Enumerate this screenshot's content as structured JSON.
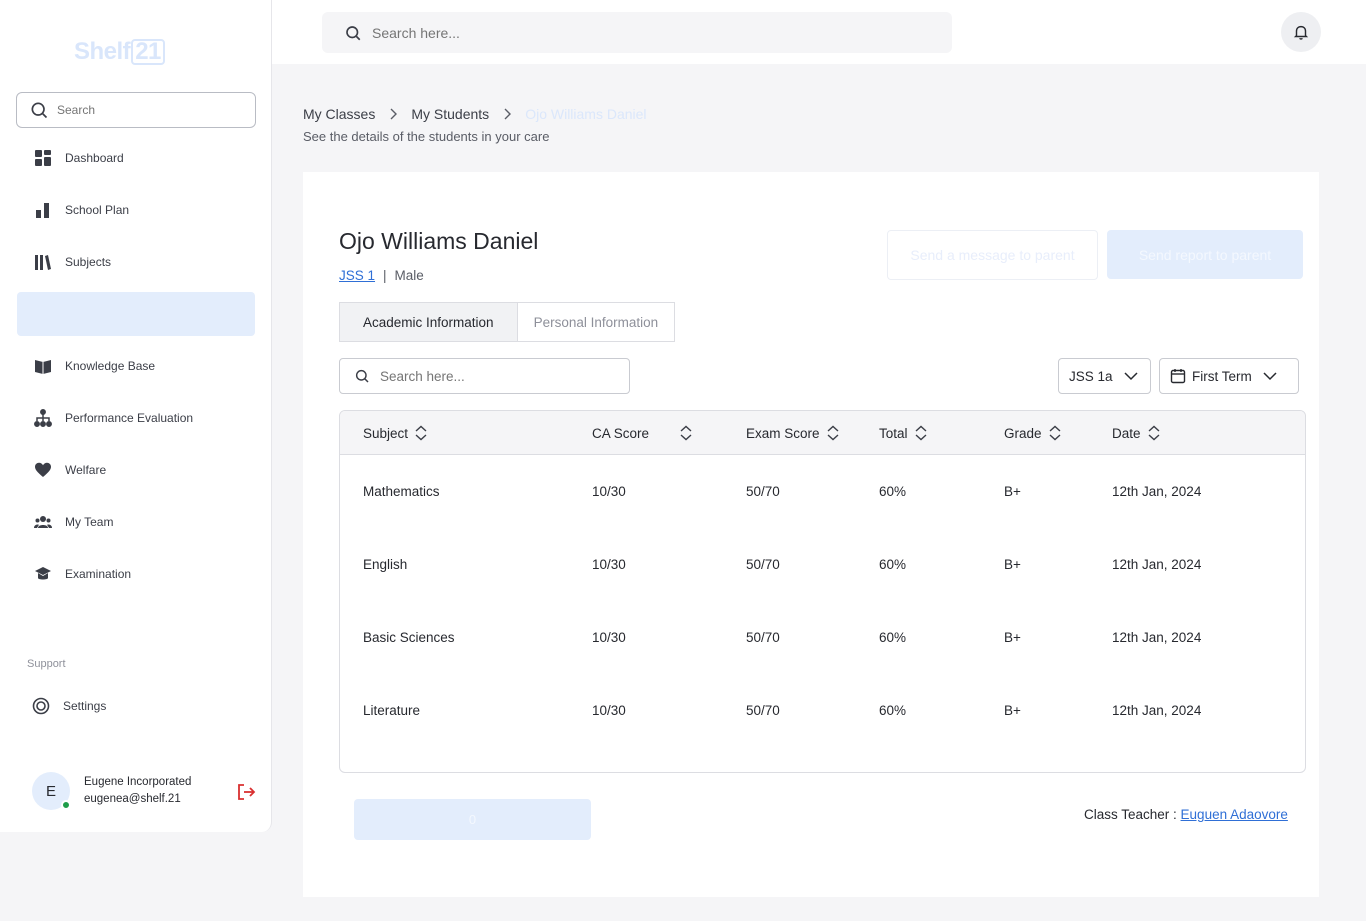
{
  "sidebar": {
    "logo_text": "Shelf",
    "logo_num": "21",
    "search_placeholder": "Search",
    "items": [
      {
        "label": "Dashboard"
      },
      {
        "label": "School Plan"
      },
      {
        "label": "Subjects"
      },
      {
        "label": "Knowledge Base"
      },
      {
        "label": "Performance Evaluation"
      },
      {
        "label": "Welfare"
      },
      {
        "label": "My Team"
      },
      {
        "label": "Examination"
      }
    ],
    "support_label": "Support",
    "settings_label": "Settings",
    "user": {
      "initial": "E",
      "name": "Eugene Incorporated",
      "email": "eugenea@shelf.21"
    }
  },
  "topbar": {
    "search_placeholder": "Search here..."
  },
  "breadcrumb": {
    "items": [
      "My Classes",
      "My Students",
      "Ojo Williams Daniel"
    ]
  },
  "subtitle": "See the details of the students in your care",
  "student": {
    "name": "Ojo Williams Daniel",
    "class": "JSS 1",
    "gender": "Male"
  },
  "actions": {
    "message": "Send a message to parent",
    "report": "Send report to parent"
  },
  "tabs": [
    {
      "label": "Academic Information"
    },
    {
      "label": "Personal Information"
    }
  ],
  "filters": {
    "search_placeholder": "Search here...",
    "class": "JSS 1a",
    "term": "First Term"
  },
  "table": {
    "headers": [
      "Subject",
      "CA Score",
      "Exam Score",
      "Total",
      "Grade",
      "Date"
    ],
    "rows": [
      [
        "Mathematics",
        "10/30",
        "50/70",
        "60%",
        "B+",
        "12th Jan, 2024"
      ],
      [
        "English",
        "10/30",
        "50/70",
        "60%",
        "B+",
        "12th Jan, 2024"
      ],
      [
        "Basic Sciences",
        "10/30",
        "50/70",
        "60%",
        "B+",
        "12th Jan, 2024"
      ],
      [
        "Literature",
        "10/30",
        "50/70",
        "60%",
        "B+",
        "12th Jan, 2024"
      ]
    ]
  },
  "bottom_button": "0",
  "class_teacher": {
    "label": "Class Teacher : ",
    "name": "Euguen Adaovore"
  }
}
